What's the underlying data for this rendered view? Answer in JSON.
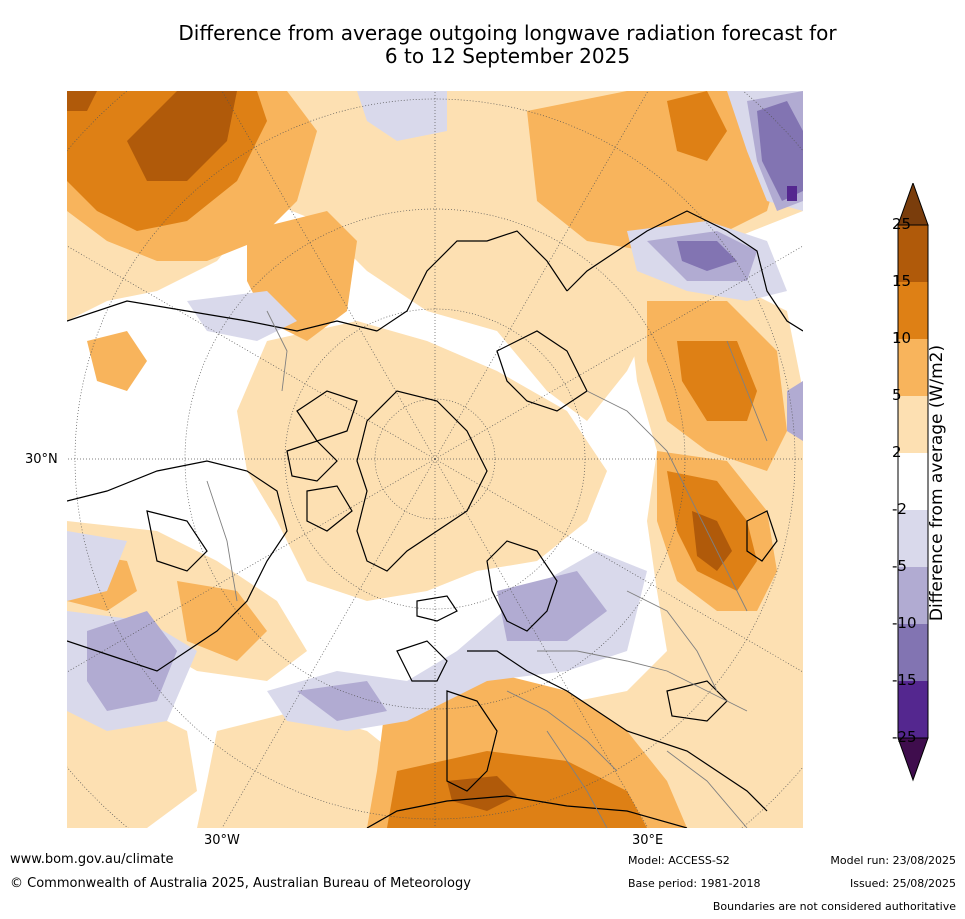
{
  "title_line1": "Difference from average outgoing longwave radiation forecast for",
  "title_line2": "6 to 12 September 2025",
  "axis_labels": {
    "lat_30n": "30°N",
    "lon_30w": "30°W",
    "lon_30e": "30°E"
  },
  "colorbar": {
    "title": "Difference from average (W/m2)",
    "ticks": [
      "25",
      "15",
      "10",
      "5",
      "2",
      "-2",
      "-5",
      "-10",
      "-15",
      "-25"
    ],
    "colors": {
      "over": "#7a3d0c",
      "c15_25": "#b05a0a",
      "c10_15": "#de8015",
      "c5_10": "#f8b45c",
      "c2_5": "#fde0b2",
      "neutral": "#ffffff",
      "cm2_m5": "#d9d9eb",
      "cm5_m10": "#b1abd2",
      "cm10_m15": "#8274b2",
      "cm15_m25": "#54278f",
      "under": "#3f0d4d"
    }
  },
  "footer": {
    "website": "www.bom.gov.au/climate",
    "copyright": "© Commonwealth of Australia 2025, Australian Bureau of Meteorology",
    "model": "Model: ACCESS-S2",
    "base_period": "Base period: 1981-2018",
    "model_run": "Model run: 23/08/2025",
    "issued": "Issued: 25/08/2025",
    "disclaimer": "Boundaries are not considered authoritative"
  }
}
